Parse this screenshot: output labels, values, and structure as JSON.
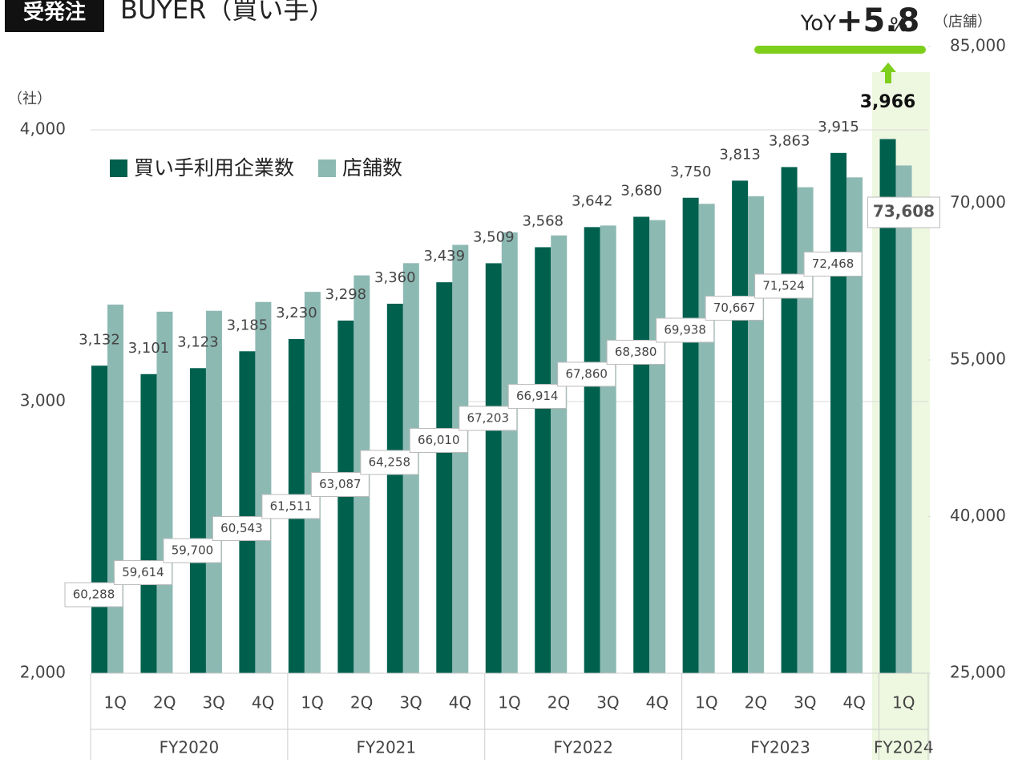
{
  "chart_data": {
    "type": "bar",
    "badge": "受発注",
    "title": "BUYER（買い手）",
    "y_label": "（社）",
    "y2_label": "（店舗）",
    "annotation": {
      "prefix": "YoY",
      "value": "+5.8",
      "suffix": "%"
    },
    "categories": [
      "1Q",
      "2Q",
      "3Q",
      "4Q",
      "1Q",
      "2Q",
      "3Q",
      "4Q",
      "1Q",
      "2Q",
      "3Q",
      "4Q",
      "1Q",
      "2Q",
      "3Q",
      "4Q",
      "1Q"
    ],
    "groups": [
      "FY2020",
      "FY2021",
      "FY2022",
      "FY2023",
      "FY2024"
    ],
    "ylim": [
      2000,
      4000
    ],
    "yticks": [
      {
        "value": 2000,
        "label": "2,000"
      },
      {
        "value": 3000,
        "label": "3,000"
      },
      {
        "value": 4000,
        "label": "4,000"
      }
    ],
    "y2lim": [
      25000,
      85000
    ],
    "y2ticks": [
      {
        "value": 25000,
        "label": "25,000"
      },
      {
        "value": 40000,
        "label": "40,000"
      },
      {
        "value": 55000,
        "label": "55,000"
      },
      {
        "value": 70000,
        "label": "70,000"
      },
      {
        "value": 85000,
        "label": "85,000"
      }
    ],
    "grid": true,
    "series": [
      {
        "name": "買い手利用企業数",
        "color": "#00604e",
        "values": [
          3132,
          3101,
          3123,
          3185,
          3230,
          3298,
          3360,
          3439,
          3509,
          3568,
          3642,
          3680,
          3750,
          3813,
          3863,
          3915,
          3966
        ],
        "value_labels": [
          "3,132",
          "3,101",
          "3,123",
          "3,185",
          "3,230",
          "3,298",
          "3,360",
          "3,439",
          "3,509",
          "3,568",
          "3,642",
          "3,680",
          "3,750",
          "3,813",
          "3,863",
          "3,915",
          "3,966"
        ]
      },
      {
        "name": "店舗数",
        "color": "#8db9b3",
        "axis": "y2",
        "values": [
          60288,
          59614,
          59700,
          60543,
          61511,
          63087,
          64258,
          66010,
          67203,
          66914,
          67860,
          68380,
          69938,
          70667,
          71524,
          72468,
          73608
        ],
        "value_labels": [
          "60,288",
          "59,614",
          "59,700",
          "60,543",
          "61,511",
          "63,087",
          "64,258",
          "66,010",
          "67,203",
          "66,914",
          "67,860",
          "68,380",
          "69,938",
          "70,667",
          "71,524",
          "72,468",
          "73,608"
        ]
      }
    ]
  }
}
